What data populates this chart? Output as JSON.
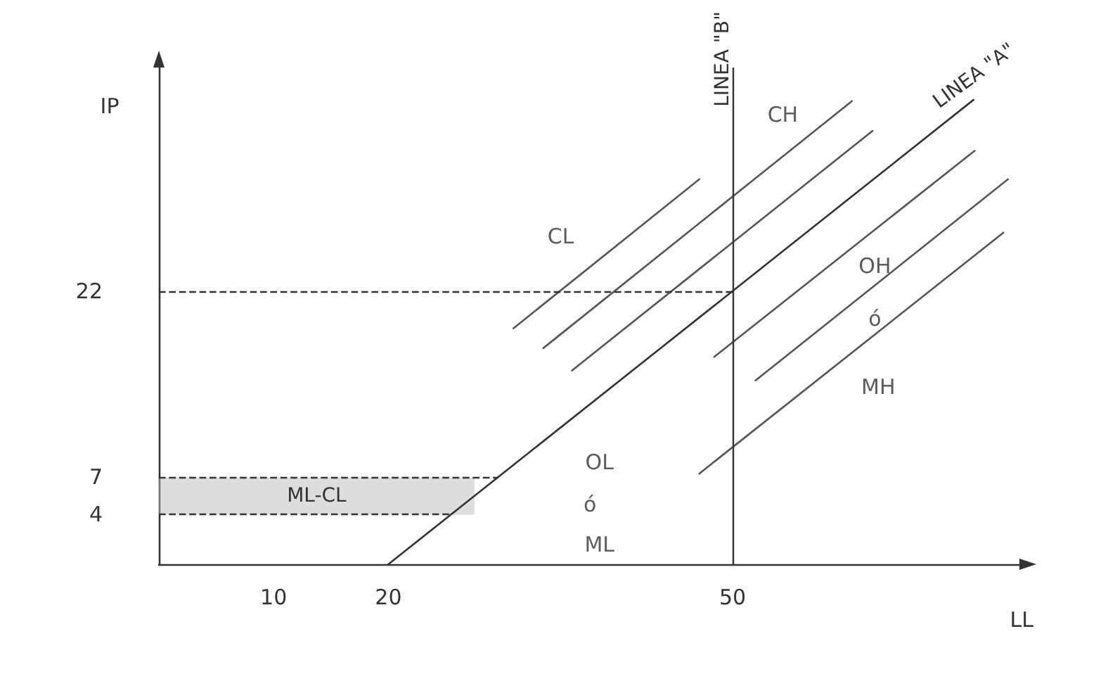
{
  "chart_data": {
    "type": "line",
    "xlabel": "LL",
    "ylabel": "IP",
    "xlim": [
      0,
      75
    ],
    "ylim": [
      0,
      40
    ],
    "xticks": [
      10,
      20,
      50
    ],
    "yticks": [
      4,
      7,
      22
    ],
    "grid": false,
    "legend": false,
    "marker": "none",
    "line_style": "solid",
    "series": [
      {
        "name": "LINEA \"A\"",
        "color": "#333333",
        "x": [
          20,
          71
        ],
        "values": [
          0,
          37.4
        ]
      },
      {
        "color": "#555555",
        "x": [
          30.9,
          47.1
        ],
        "values": [
          19.0,
          31.0
        ]
      },
      {
        "color": "#555555",
        "x": [
          33.5,
          60.4
        ],
        "values": [
          17.4,
          37.3
        ]
      },
      {
        "color": "#555555",
        "x": [
          36,
          62.2
        ],
        "values": [
          15.6,
          34.9
        ]
      },
      {
        "color": "#555555",
        "x": [
          48.4,
          71.1
        ],
        "values": [
          16.7,
          33.3
        ]
      },
      {
        "color": "#555555",
        "x": [
          52,
          74
        ],
        "values": [
          14.8,
          31
        ]
      },
      {
        "color": "#555555",
        "x": [
          47.1,
          73.6
        ],
        "values": [
          7.3,
          26.7
        ]
      }
    ],
    "ref_lines": [
      {
        "axis": "x",
        "value": 50,
        "label": "LINEA \"B\"",
        "color": "#333333",
        "line_style": "solid"
      },
      {
        "axis": "y",
        "value": 22,
        "color": "#333333",
        "line_style": "dashed"
      },
      {
        "axis": "y",
        "value": 7,
        "color": "#333333",
        "line_style": "dashed"
      },
      {
        "axis": "y",
        "value": 4,
        "color": "#333333",
        "line_style": "dashed"
      }
    ],
    "bands": [
      {
        "axis": "y",
        "from": 4,
        "to": 7,
        "label": "ML-CL",
        "color": "#bbbbbb"
      }
    ],
    "annotations": [
      "CL",
      "CH",
      "OH",
      "ó",
      "MH",
      "OL",
      "ó",
      "ML"
    ]
  }
}
